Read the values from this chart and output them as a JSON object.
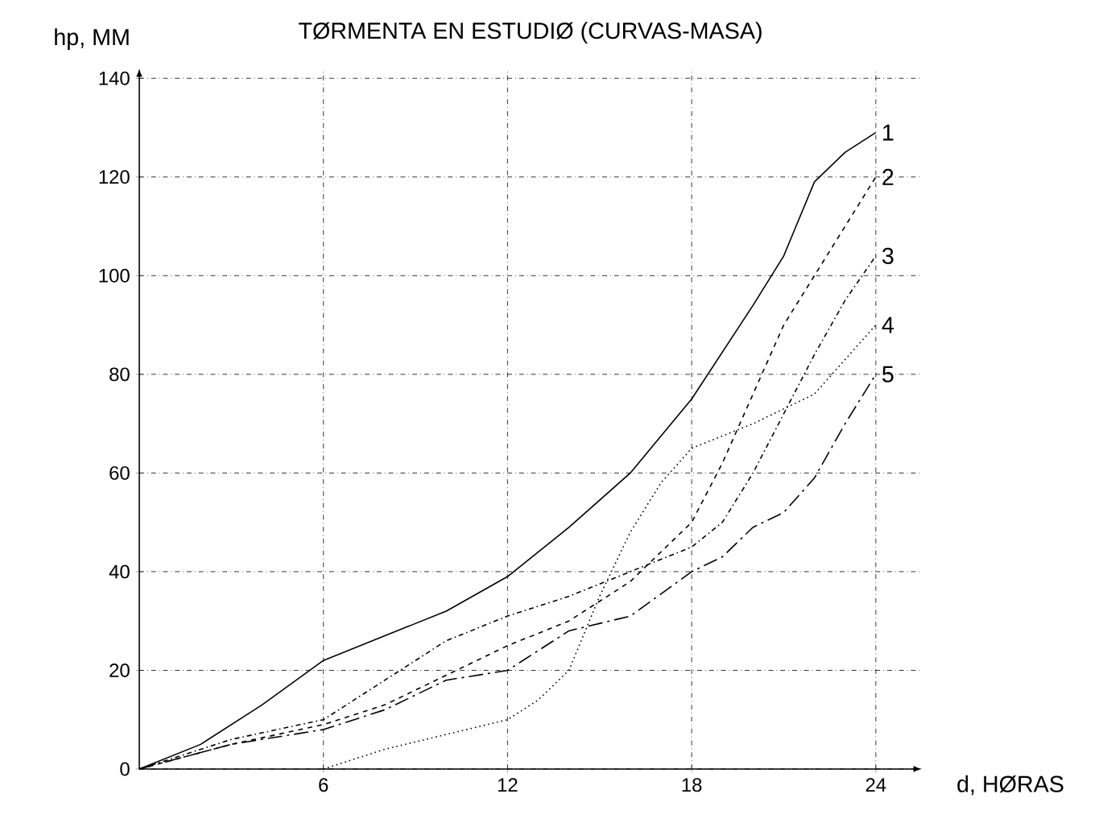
{
  "chart_data": {
    "type": "line",
    "title": "TØRMENTA EN ESTUDIØ (CURVAS-MASA)",
    "xlabel": "d, HØRAS",
    "ylabel": "hp, MM",
    "xlim": [
      0,
      25.5
    ],
    "ylim": [
      0,
      142
    ],
    "xticks": [
      6,
      12,
      18,
      24
    ],
    "yticks": [
      0,
      20,
      40,
      60,
      80,
      100,
      120,
      140
    ],
    "grid": true,
    "series": [
      {
        "name": "1",
        "color": "#000000",
        "line_style": "solid",
        "x": [
          0,
          2,
          4,
          6,
          8,
          10,
          12,
          14,
          16,
          18,
          20,
          21,
          22,
          23,
          24
        ],
        "values": [
          0,
          5,
          13,
          22,
          27,
          32,
          39,
          49,
          60,
          75,
          94,
          104,
          119,
          125,
          129
        ]
      },
      {
        "name": "2",
        "color": "#000000",
        "line_style": "dashed",
        "x": [
          0,
          3,
          6,
          8,
          10,
          12,
          14,
          16,
          18,
          19,
          20,
          21,
          22,
          23,
          24
        ],
        "values": [
          0,
          5,
          9,
          13,
          19,
          25,
          30,
          38,
          50,
          62,
          76,
          90,
          100,
          110,
          120
        ]
      },
      {
        "name": "3",
        "color": "#000000",
        "line_style": "dashdot",
        "x": [
          0,
          3,
          6,
          8,
          10,
          12,
          14,
          16,
          18,
          19,
          20,
          21,
          22,
          23,
          24
        ],
        "values": [
          0,
          6,
          10,
          18,
          26,
          31,
          35,
          40,
          45,
          50,
          60,
          72,
          84,
          95,
          104
        ]
      },
      {
        "name": "4",
        "color": "#000000",
        "line_style": "dotted",
        "x": [
          6,
          8,
          10,
          12,
          13,
          14,
          15,
          16,
          17,
          18,
          20,
          22,
          24
        ],
        "values": [
          0,
          4,
          7,
          10,
          14,
          20,
          35,
          48,
          58,
          65,
          70,
          76,
          90
        ]
      },
      {
        "name": "5",
        "color": "#000000",
        "line_style": "longdashdot",
        "x": [
          0,
          3,
          6,
          8,
          10,
          12,
          14,
          16,
          18,
          19,
          20,
          21,
          22,
          23,
          24
        ],
        "values": [
          0,
          5,
          8,
          12,
          18,
          20,
          28,
          31,
          40,
          43,
          49,
          52,
          59,
          70,
          80
        ]
      }
    ]
  }
}
